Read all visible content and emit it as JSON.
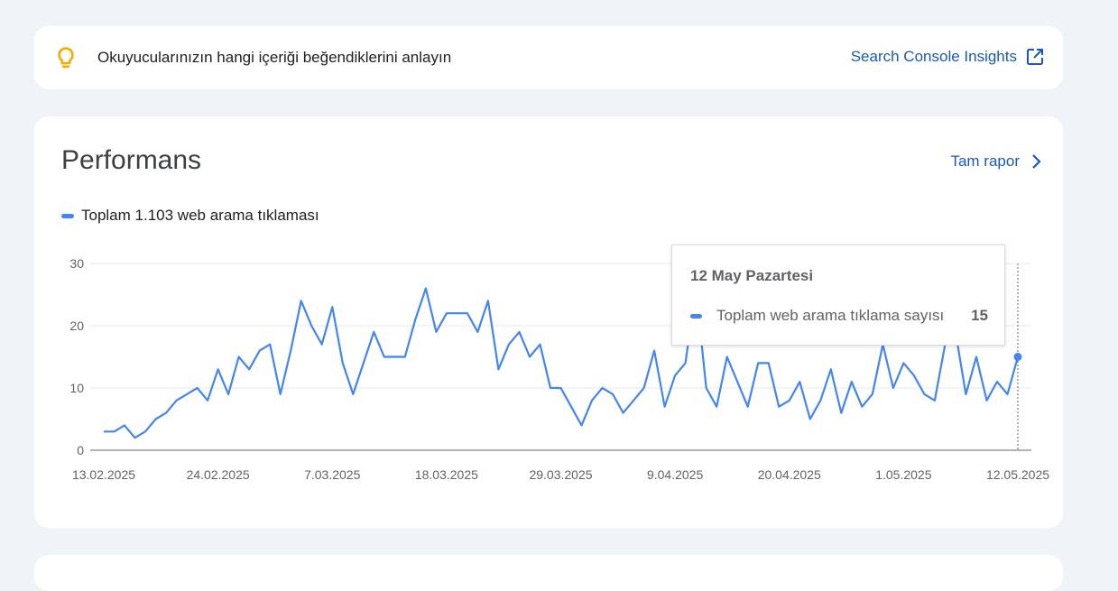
{
  "insight": {
    "text": "Okuyucularınızın hangi içeriği beğendiklerini anlayın",
    "link_label": "Search Console Insights"
  },
  "performance": {
    "title": "Performans",
    "report_link": "Tam rapor",
    "legend_label": "Toplam 1.103 web arama tıklaması"
  },
  "tooltip": {
    "date": "12 May Pazartesi",
    "label": "Toplam web arama tıklama sayısı",
    "value": "15"
  },
  "colors": {
    "accent": "#4285f4",
    "link": "#1a57c2",
    "bulb": "#f9ab00"
  },
  "chart_data": {
    "type": "line",
    "ylim": [
      0,
      30
    ],
    "y_ticks": [
      "0",
      "10",
      "20",
      "30"
    ],
    "x_tick_labels": [
      "13.02.2025",
      "24.02.2025",
      "7.03.2025",
      "18.03.2025",
      "29.03.2025",
      "9.04.2025",
      "20.04.2025",
      "1.05.2025",
      "12.05.2025"
    ],
    "series": [
      {
        "name": "Toplam web arama tıklama sayısı",
        "start_date": "13.02.2025",
        "end_date": "12.05.2025",
        "values": [
          3,
          3,
          4,
          2,
          3,
          5,
          6,
          8,
          9,
          10,
          8,
          13,
          9,
          15,
          13,
          16,
          17,
          9,
          16,
          24,
          20,
          17,
          23,
          14,
          9,
          14,
          19,
          15,
          15,
          15,
          21,
          26,
          19,
          22,
          22,
          22,
          19,
          24,
          13,
          17,
          19,
          15,
          17,
          10,
          10,
          7,
          4,
          8,
          10,
          9,
          6,
          8,
          10,
          16,
          7,
          12,
          14,
          26,
          10,
          7,
          15,
          11,
          7,
          14,
          14,
          7,
          8,
          11,
          5,
          8,
          13,
          6,
          11,
          7,
          9,
          17,
          10,
          14,
          12,
          9,
          8,
          17,
          19,
          9,
          15,
          8,
          11,
          9,
          15
        ]
      }
    ]
  }
}
